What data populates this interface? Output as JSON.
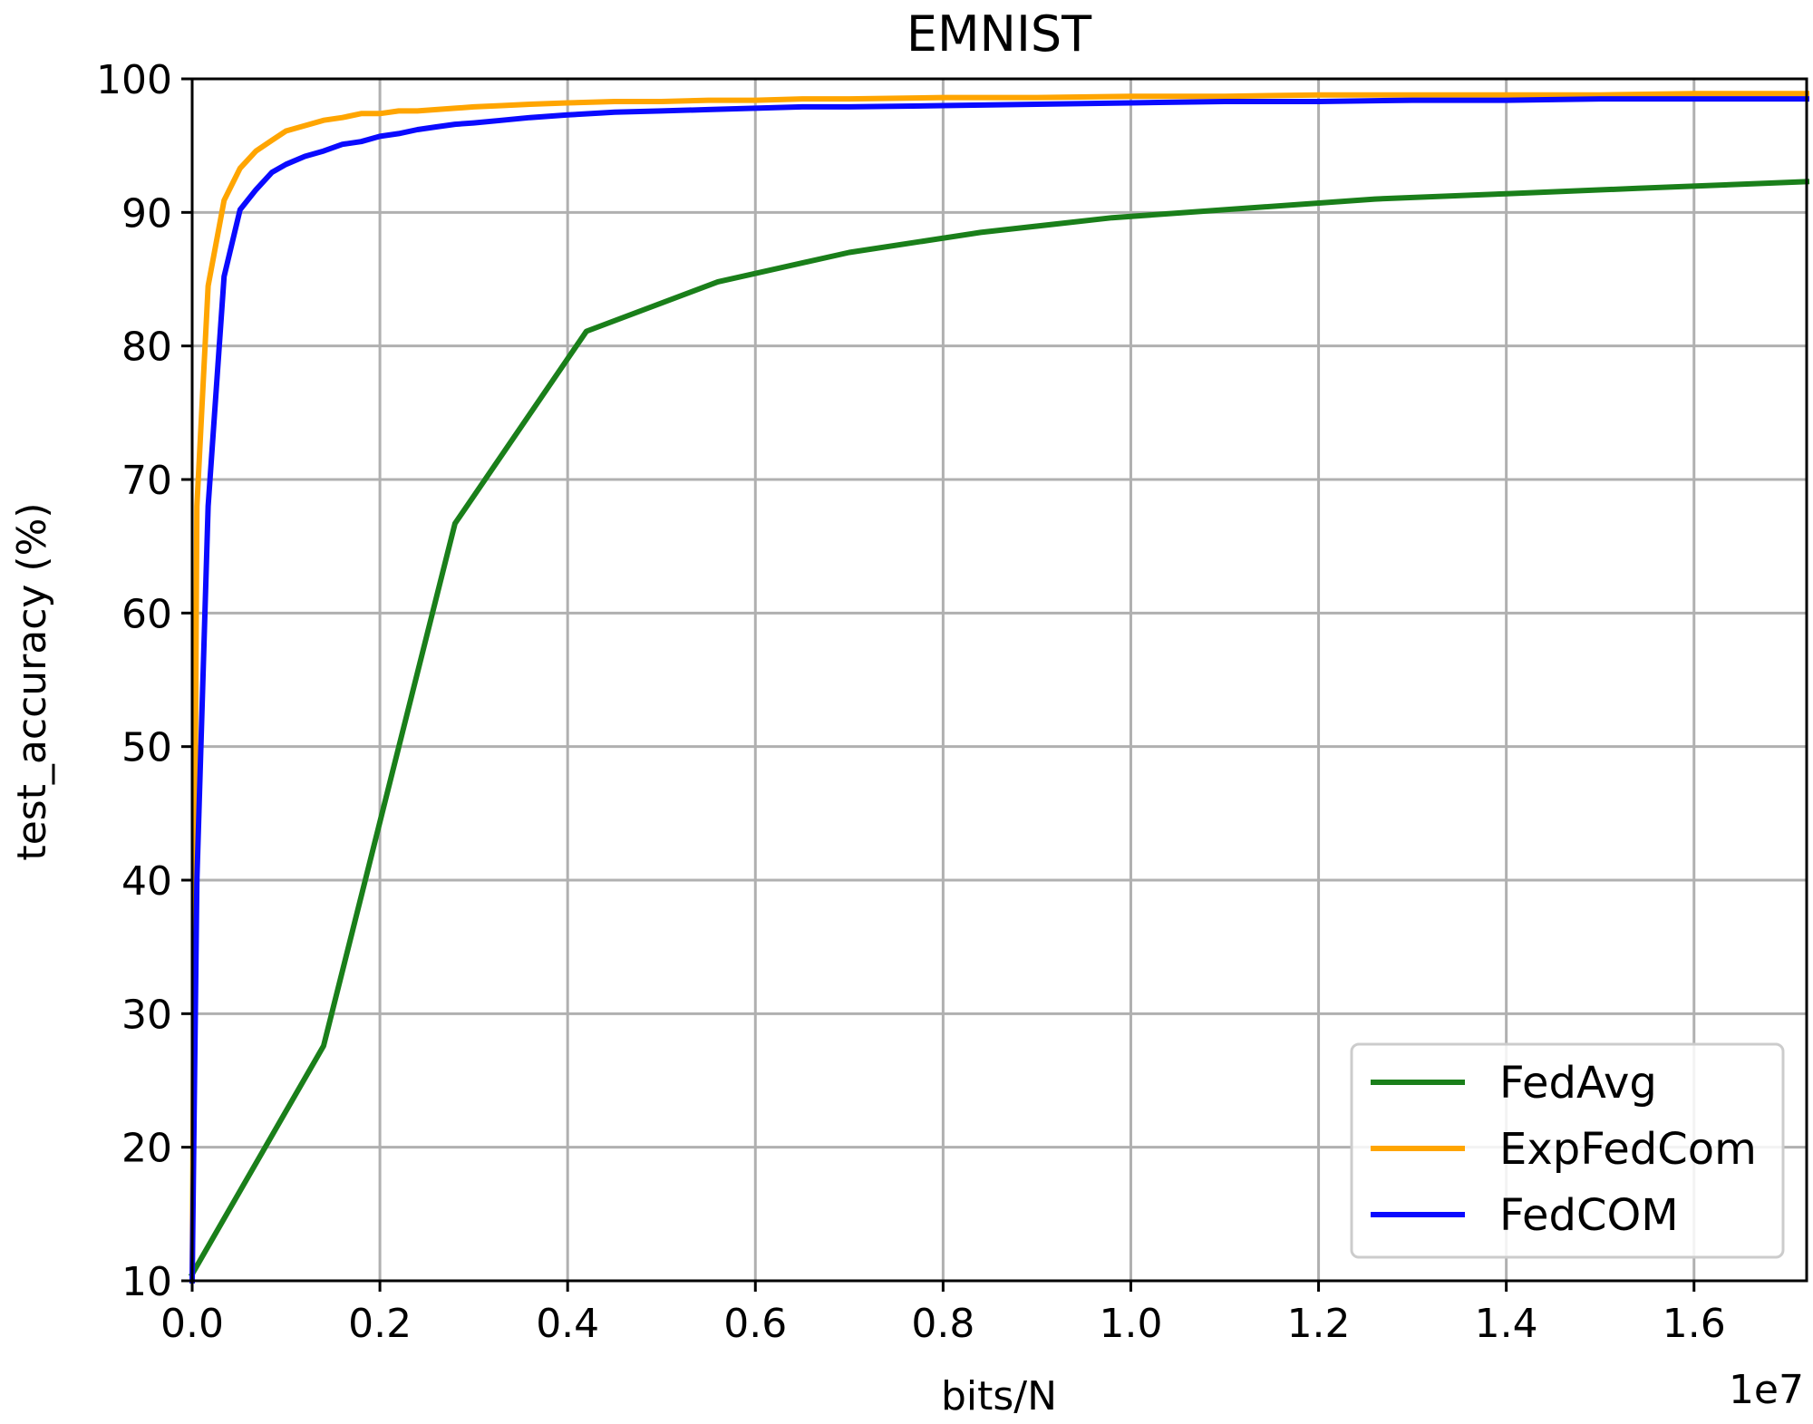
{
  "chart_data": {
    "type": "line",
    "title": "EMNIST",
    "xlabel": "bits/N",
    "ylabel": "test_accuracy (%)",
    "x_offset_label": "1e7",
    "xlim": [
      0.0,
      1.72
    ],
    "ylim": [
      10,
      100
    ],
    "x_ticks": [
      0.0,
      0.2,
      0.4,
      0.6,
      0.8,
      1.0,
      1.2,
      1.4,
      1.6
    ],
    "x_tick_labels": [
      "0.0",
      "0.2",
      "0.4",
      "0.6",
      "0.8",
      "1.0",
      "1.2",
      "1.4",
      "1.6"
    ],
    "y_ticks": [
      10,
      20,
      30,
      40,
      50,
      60,
      70,
      80,
      90,
      100
    ],
    "y_tick_labels": [
      "10",
      "20",
      "30",
      "40",
      "50",
      "60",
      "70",
      "80",
      "90",
      "100"
    ],
    "grid": true,
    "legend_position": "bottom-right",
    "series": [
      {
        "name": "FedAvg",
        "color": "#1a7f1a",
        "x": [
          0.0,
          0.14,
          0.28,
          0.42,
          0.56,
          0.7,
          0.84,
          0.98,
          1.12,
          1.26,
          1.4,
          1.54,
          1.72
        ],
        "y": [
          10.5,
          27.6,
          66.7,
          81.1,
          84.8,
          87.0,
          88.5,
          89.6,
          90.3,
          91.0,
          91.4,
          91.8,
          92.3
        ]
      },
      {
        "name": "ExpFedCom",
        "color": "#ffa500",
        "x": [
          0.0,
          0.005,
          0.017,
          0.034,
          0.051,
          0.068,
          0.085,
          0.1,
          0.12,
          0.14,
          0.16,
          0.18,
          0.2,
          0.22,
          0.24,
          0.26,
          0.28,
          0.3,
          0.33,
          0.36,
          0.4,
          0.45,
          0.5,
          0.55,
          0.6,
          0.65,
          0.7,
          0.8,
          0.9,
          1.0,
          1.1,
          1.2,
          1.3,
          1.4,
          1.5,
          1.6,
          1.72
        ],
        "y": [
          10.0,
          68.0,
          84.5,
          90.9,
          93.3,
          94.6,
          95.4,
          96.1,
          96.5,
          96.9,
          97.1,
          97.4,
          97.4,
          97.6,
          97.6,
          97.7,
          97.8,
          97.9,
          98.0,
          98.1,
          98.2,
          98.3,
          98.3,
          98.4,
          98.4,
          98.5,
          98.5,
          98.6,
          98.6,
          98.7,
          98.7,
          98.8,
          98.8,
          98.8,
          98.8,
          98.9,
          98.9
        ]
      },
      {
        "name": "FedCOM",
        "color": "#0a0aff",
        "x": [
          0.0,
          0.005,
          0.017,
          0.034,
          0.051,
          0.068,
          0.085,
          0.1,
          0.12,
          0.14,
          0.16,
          0.18,
          0.2,
          0.22,
          0.24,
          0.26,
          0.28,
          0.3,
          0.33,
          0.36,
          0.4,
          0.45,
          0.5,
          0.55,
          0.6,
          0.65,
          0.7,
          0.8,
          0.9,
          1.0,
          1.1,
          1.2,
          1.3,
          1.4,
          1.5,
          1.6,
          1.72
        ],
        "y": [
          10.0,
          40.0,
          68.0,
          85.2,
          90.2,
          91.7,
          93.0,
          93.6,
          94.2,
          94.6,
          95.1,
          95.3,
          95.7,
          95.9,
          96.2,
          96.4,
          96.6,
          96.7,
          96.9,
          97.1,
          97.3,
          97.5,
          97.6,
          97.7,
          97.8,
          97.9,
          97.9,
          98.0,
          98.1,
          98.2,
          98.3,
          98.3,
          98.4,
          98.4,
          98.5,
          98.5,
          98.5
        ]
      }
    ]
  }
}
